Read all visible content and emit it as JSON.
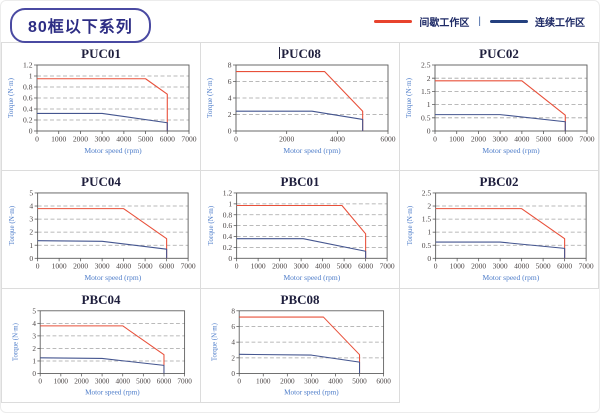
{
  "header": {
    "badge_label": "80框以下系列",
    "legend": [
      {
        "name": "intermittent-work-zone",
        "label": "间歇工作区",
        "color": "#e8432d"
      },
      {
        "name": "continuous-work-zone",
        "label": "连续工作区",
        "color": "#24407f"
      }
    ],
    "legend_separator": "|"
  },
  "colors": {
    "intermittent_line": "#e8503a",
    "continuous_line": "#44558f",
    "grid_line": "#a3a3a3",
    "plot_frame": "#5a5a5a",
    "tick_label": "#4a4444",
    "axis_label": "#4d7cc9",
    "cell_border": "#dcdcdc",
    "title_text": "#1f1f3d"
  },
  "chart_data": [
    {
      "type": "line",
      "title": "PUC01",
      "title_cursor": false,
      "xlabel": "Motor speed (rpm)",
      "ylabel": "Torque (N·m)",
      "xlim": [
        0,
        7000
      ],
      "ylim": [
        0,
        1.2
      ],
      "xticks": [
        0,
        1000,
        2000,
        3000,
        4000,
        5000,
        6000,
        7000
      ],
      "yticks": [
        0,
        0.2,
        0.4,
        0.6,
        0.8,
        1,
        1.2
      ],
      "ytick_labels": [
        "0",
        "0.2",
        "0.4",
        "0.6",
        "0.8",
        "1",
        "1.2"
      ],
      "series": [
        {
          "name": "间歇工作区",
          "role": "intermittent",
          "points": [
            [
              0,
              0.95
            ],
            [
              5000,
              0.95
            ],
            [
              6000,
              0.67
            ],
            [
              6000,
              0
            ]
          ]
        },
        {
          "name": "连续工作区",
          "role": "continuous",
          "points": [
            [
              0,
              0.32
            ],
            [
              3000,
              0.32
            ],
            [
              6000,
              0.15
            ],
            [
              6000,
              0
            ]
          ]
        }
      ]
    },
    {
      "type": "line",
      "title": "PUC08",
      "title_cursor": true,
      "xlabel": "Motor speed (rpm)",
      "ylabel": "Torque (N·m)",
      "xlim": [
        0,
        6000
      ],
      "ylim": [
        0,
        8
      ],
      "xticks": [
        0,
        2000,
        4000,
        6000
      ],
      "yticks": [
        0,
        2,
        4,
        6,
        8
      ],
      "ytick_labels": [
        "0",
        "2",
        "4",
        "6",
        "8"
      ],
      "series": [
        {
          "name": "间歇工作区",
          "role": "intermittent",
          "points": [
            [
              0,
              7.2
            ],
            [
              3500,
              7.2
            ],
            [
              5000,
              2.4
            ],
            [
              5000,
              0
            ]
          ]
        },
        {
          "name": "连续工作区",
          "role": "continuous",
          "points": [
            [
              0,
              2.4
            ],
            [
              3000,
              2.4
            ],
            [
              5000,
              1.4
            ],
            [
              5000,
              0
            ]
          ]
        }
      ]
    },
    {
      "type": "line",
      "title": "PUC02",
      "title_cursor": false,
      "xlabel": "Motor speed (rpm)",
      "ylabel": "Torque (N·m)",
      "xlim": [
        0,
        7000
      ],
      "ylim": [
        0,
        2.5
      ],
      "xticks": [
        0,
        1000,
        2000,
        3000,
        4000,
        5000,
        6000,
        7000
      ],
      "yticks": [
        0,
        0.5,
        1,
        1.5,
        2,
        2.5
      ],
      "ytick_labels": [
        "0",
        "0.5",
        "1",
        "1.5",
        "2",
        "2.5"
      ],
      "series": [
        {
          "name": "间歇工作区",
          "role": "intermittent",
          "points": [
            [
              0,
              1.9
            ],
            [
              4000,
              1.9
            ],
            [
              6000,
              0.6
            ],
            [
              6000,
              0
            ]
          ]
        },
        {
          "name": "连续工作区",
          "role": "continuous",
          "points": [
            [
              0,
              0.62
            ],
            [
              3000,
              0.62
            ],
            [
              6000,
              0.35
            ],
            [
              6000,
              0
            ]
          ]
        }
      ]
    },
    {
      "type": "line",
      "title": "PUC04",
      "title_cursor": false,
      "xlabel": "Motor speed (rpm)",
      "ylabel": "Torque (N·m)",
      "xlim": [
        0,
        7000
      ],
      "ylim": [
        0,
        5
      ],
      "xticks": [
        0,
        1000,
        2000,
        3000,
        4000,
        5000,
        6000,
        7000
      ],
      "yticks": [
        0,
        1,
        2,
        3,
        4,
        5
      ],
      "ytick_labels": [
        "0",
        "1",
        "2",
        "3",
        "4",
        "5"
      ],
      "series": [
        {
          "name": "间歇工作区",
          "role": "intermittent",
          "points": [
            [
              0,
              3.8
            ],
            [
              4000,
              3.8
            ],
            [
              6000,
              1.5
            ],
            [
              6000,
              0
            ]
          ]
        },
        {
          "name": "连续工作区",
          "role": "continuous",
          "points": [
            [
              0,
              1.35
            ],
            [
              3000,
              1.3
            ],
            [
              6000,
              0.7
            ],
            [
              6000,
              0
            ]
          ]
        }
      ]
    },
    {
      "type": "line",
      "title": "PBC01",
      "title_cursor": false,
      "xlabel": "Motor speed (rpm)",
      "ylabel": "Torque (N·m)",
      "xlim": [
        0,
        7000
      ],
      "ylim": [
        0,
        1.2
      ],
      "xticks": [
        0,
        1000,
        2000,
        3000,
        4000,
        5000,
        6000,
        7000
      ],
      "yticks": [
        0,
        0.2,
        0.4,
        0.6,
        0.8,
        1,
        1.2
      ],
      "ytick_labels": [
        "0",
        "0.2",
        "0.4",
        "0.6",
        "0.8",
        "1",
        "1.2"
      ],
      "series": [
        {
          "name": "间歇工作区",
          "role": "intermittent",
          "points": [
            [
              0,
              0.97
            ],
            [
              4900,
              0.97
            ],
            [
              6000,
              0.45
            ],
            [
              6000,
              0
            ]
          ]
        },
        {
          "name": "连续工作区",
          "role": "continuous",
          "points": [
            [
              0,
              0.36
            ],
            [
              3100,
              0.36
            ],
            [
              6000,
              0.13
            ],
            [
              6000,
              0
            ]
          ]
        }
      ]
    },
    {
      "type": "line",
      "title": "PBC02",
      "title_cursor": false,
      "xlabel": "Motor speed (rpm)",
      "ylabel": "Torque (N·m)",
      "xlim": [
        0,
        7000
      ],
      "ylim": [
        0,
        2.5
      ],
      "xticks": [
        0,
        1000,
        2000,
        3000,
        4000,
        5000,
        6000,
        7000
      ],
      "yticks": [
        0,
        0.5,
        1,
        1.5,
        2,
        2.5
      ],
      "ytick_labels": [
        "0",
        "0.5",
        "1",
        "1.5",
        "2",
        "2.5"
      ],
      "series": [
        {
          "name": "间歇工作区",
          "role": "intermittent",
          "points": [
            [
              0,
              1.9
            ],
            [
              4000,
              1.9
            ],
            [
              6000,
              0.75
            ],
            [
              6000,
              0
            ]
          ]
        },
        {
          "name": "连续工作区",
          "role": "continuous",
          "points": [
            [
              0,
              0.62
            ],
            [
              3000,
              0.62
            ],
            [
              6000,
              0.38
            ],
            [
              6000,
              0
            ]
          ]
        }
      ]
    },
    {
      "type": "line",
      "title": "PBC04",
      "title_cursor": false,
      "xlabel": "Motor speed (rpm)",
      "ylabel": "Torque (N·m)",
      "xlim": [
        0,
        7000
      ],
      "ylim": [
        0,
        5
      ],
      "xticks": [
        0,
        1000,
        2000,
        3000,
        4000,
        5000,
        6000,
        7000
      ],
      "yticks": [
        0,
        1,
        2,
        3,
        4,
        5
      ],
      "ytick_labels": [
        "0",
        "1",
        "2",
        "3",
        "4",
        "5"
      ],
      "series": [
        {
          "name": "间歇工作区",
          "role": "intermittent",
          "points": [
            [
              0,
              3.8
            ],
            [
              4000,
              3.8
            ],
            [
              6000,
              1.5
            ],
            [
              6000,
              0
            ]
          ]
        },
        {
          "name": "连续工作区",
          "role": "continuous",
          "points": [
            [
              0,
              1.25
            ],
            [
              3000,
              1.2
            ],
            [
              6000,
              0.65
            ],
            [
              6000,
              0
            ]
          ]
        }
      ]
    },
    {
      "type": "line",
      "title": "PBC08",
      "title_cursor": false,
      "xlabel": "Motor speed (rpm)",
      "ylabel": "Torque (N·m)",
      "xlim": [
        0,
        6000
      ],
      "ylim": [
        0,
        8
      ],
      "xticks": [
        0,
        1000,
        2000,
        3000,
        4000,
        5000,
        6000
      ],
      "yticks": [
        0,
        2,
        4,
        6,
        8
      ],
      "ytick_labels": [
        "0",
        "2",
        "4",
        "6",
        "8"
      ],
      "series": [
        {
          "name": "间歇工作区",
          "role": "intermittent",
          "points": [
            [
              0,
              7.2
            ],
            [
              3500,
              7.2
            ],
            [
              5000,
              2.4
            ],
            [
              5000,
              0
            ]
          ]
        },
        {
          "name": "连续工作区",
          "role": "continuous",
          "points": [
            [
              0,
              2.45
            ],
            [
              3000,
              2.35
            ],
            [
              5000,
              1.45
            ],
            [
              5000,
              0
            ]
          ]
        }
      ]
    }
  ],
  "grid": {
    "columns": 3,
    "rows": 3,
    "empty_last_cell": true
  }
}
